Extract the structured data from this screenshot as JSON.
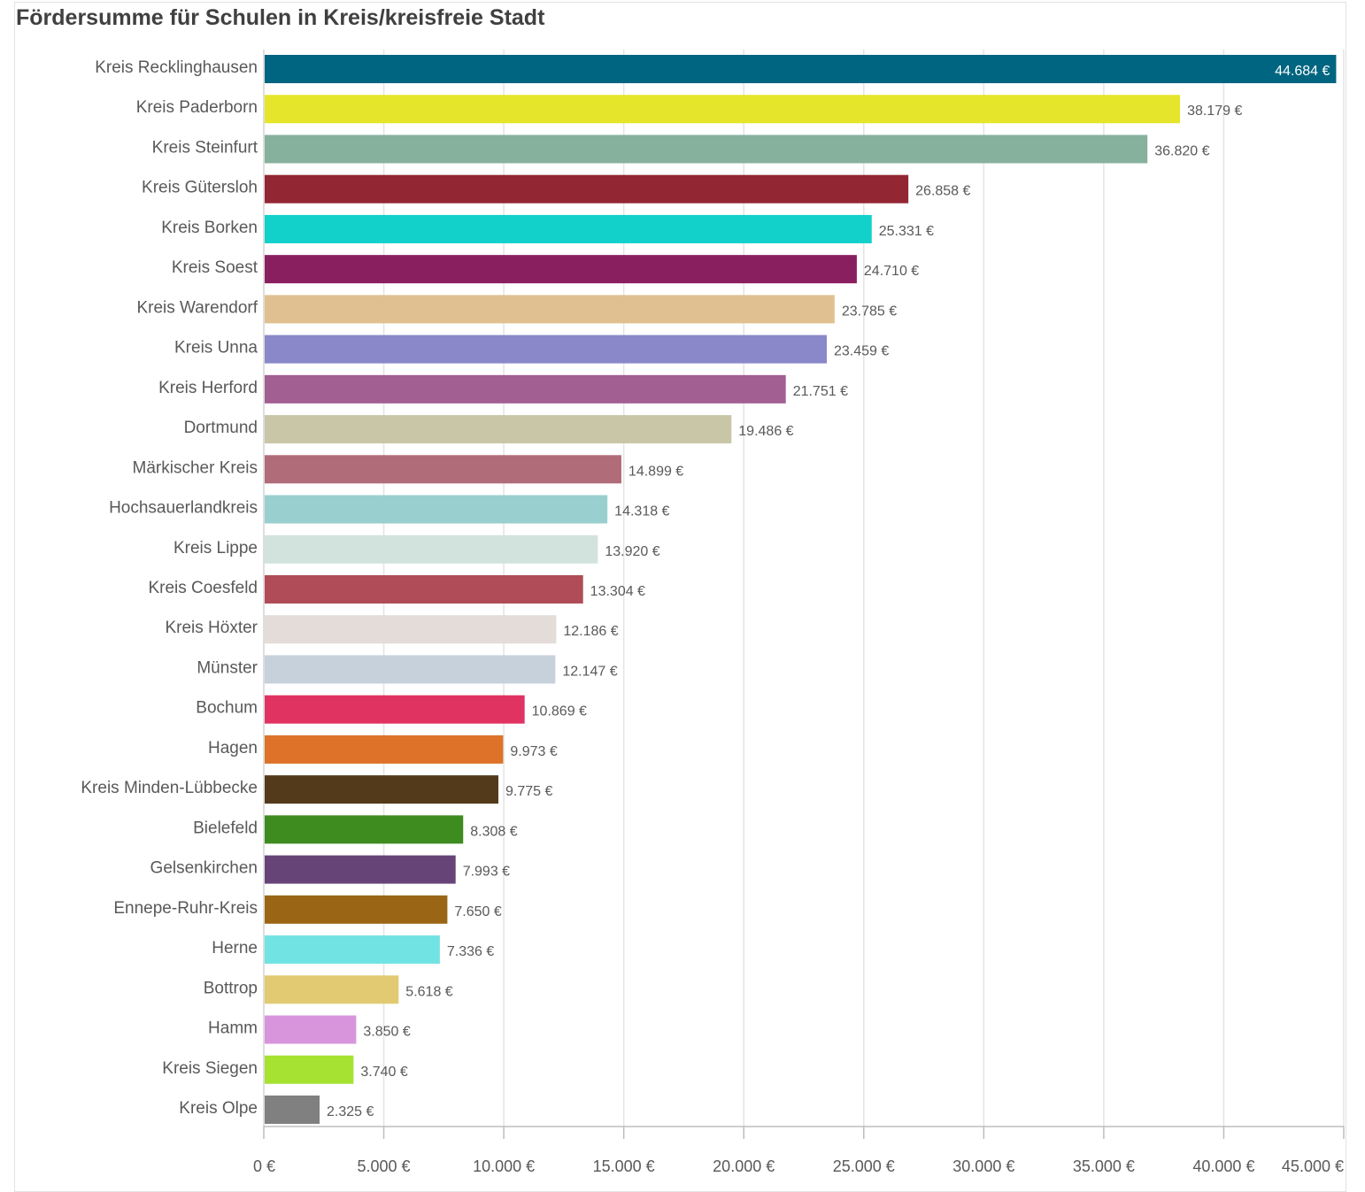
{
  "chart_data": {
    "type": "bar",
    "orientation": "horizontal",
    "title": "Fördersumme für Schulen in Kreis/kreisfreie Stadt",
    "xlabel": "",
    "ylabel": "",
    "xlim": [
      0,
      45000
    ],
    "grid": true,
    "legend": "none",
    "categories": [
      "Kreis Recklinghausen",
      "Kreis Paderborn",
      "Kreis Steinfurt",
      "Kreis Gütersloh",
      "Kreis Borken",
      "Kreis Soest",
      "Kreis Warendorf",
      "Kreis Unna",
      "Kreis Herford",
      "Dortmund",
      "Märkischer Kreis",
      "Hochsauerlandkreis",
      "Kreis Lippe",
      "Kreis Coesfeld",
      "Kreis Höxter",
      "Münster",
      "Bochum",
      "Hagen",
      "Kreis Minden-Lübbecke",
      "Bielefeld",
      "Gelsenkirchen",
      "Ennepe-Ruhr-Kreis",
      "Herne",
      "Bottrop",
      "Hamm",
      "Kreis Siegen",
      "Kreis Olpe"
    ],
    "values": [
      44684,
      38179,
      36820,
      26858,
      25331,
      24710,
      23785,
      23459,
      21751,
      19486,
      14899,
      14318,
      13920,
      13304,
      12186,
      12147,
      10869,
      9973,
      9775,
      8308,
      7993,
      7650,
      7336,
      5618,
      3850,
      3740,
      2325
    ],
    "value_labels": [
      "44.684 €",
      "38.179 €",
      "36.820 €",
      "26.858 €",
      "25.331 €",
      "24.710 €",
      "23.785 €",
      "23.459 €",
      "21.751 €",
      "19.486 €",
      "14.899 €",
      "14.318 €",
      "13.920 €",
      "13.304 €",
      "12.186 €",
      "12.147 €",
      "10.869 €",
      "9.973 €",
      "9.775 €",
      "8.308 €",
      "7.993 €",
      "7.650 €",
      "7.336 €",
      "5.618 €",
      "3.850 €",
      "3.740 €",
      "2.325 €"
    ],
    "colors": [
      "#006580",
      "#e5e52b",
      "#86b19d",
      "#922733",
      "#12d0ca",
      "#8a1f5f",
      "#e0c090",
      "#8a88c9",
      "#a25f91",
      "#c9c6a8",
      "#b06c79",
      "#99d0cf",
      "#d2e3dd",
      "#b04c57",
      "#e3dcd8",
      "#c6d1dc",
      "#e03362",
      "#dd7228",
      "#533a1b",
      "#3e8c1f",
      "#664478",
      "#9a6616",
      "#72e3e3",
      "#e2ca72",
      "#d895dc",
      "#a5e232",
      "#808080"
    ],
    "x_ticks": [
      0,
      5000,
      10000,
      15000,
      20000,
      25000,
      30000,
      35000,
      40000,
      45000
    ],
    "x_tick_labels": [
      "0 €",
      "5.000 €",
      "10.000 €",
      "15.000 €",
      "20.000 €",
      "25.000 €",
      "30.000 €",
      "35.000 €",
      "40.000 €",
      "45.000 €"
    ]
  }
}
